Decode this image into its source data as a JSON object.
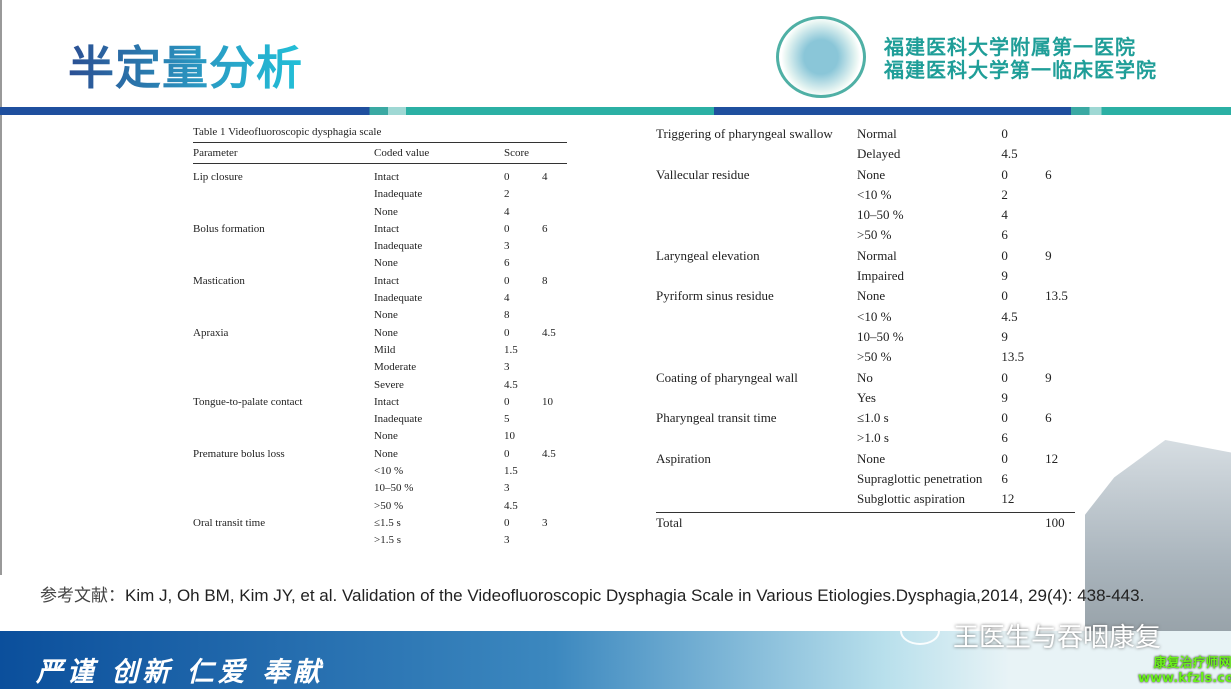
{
  "title": "半定量分析",
  "hospital": {
    "line1": "福建医科大学附属第一医院",
    "line2": "福建医科大学第一临床医学院"
  },
  "table1": {
    "caption": "Table 1  Videofluoroscopic dysphagia scale",
    "headers": [
      "Parameter",
      "Coded value",
      "Score",
      ""
    ],
    "rows": [
      [
        "Lip closure",
        "Intact",
        "0",
        "4"
      ],
      [
        "",
        "Inadequate",
        "2",
        ""
      ],
      [
        "",
        "None",
        "4",
        ""
      ],
      [
        "Bolus formation",
        "Intact",
        "0",
        "6"
      ],
      [
        "",
        "Inadequate",
        "3",
        ""
      ],
      [
        "",
        "None",
        "6",
        ""
      ],
      [
        "Mastication",
        "Intact",
        "0",
        "8"
      ],
      [
        "",
        "Inadequate",
        "4",
        ""
      ],
      [
        "",
        "None",
        "8",
        ""
      ],
      [
        "Apraxia",
        "None",
        "0",
        "4.5"
      ],
      [
        "",
        "Mild",
        "1.5",
        ""
      ],
      [
        "",
        "Moderate",
        "3",
        ""
      ],
      [
        "",
        "Severe",
        "4.5",
        ""
      ],
      [
        "Tongue-to-palate contact",
        "Intact",
        "0",
        "10"
      ],
      [
        "",
        "Inadequate",
        "5",
        ""
      ],
      [
        "",
        "None",
        "10",
        ""
      ],
      [
        "Premature bolus loss",
        "None",
        "0",
        "4.5"
      ],
      [
        "",
        "<10 %",
        "1.5",
        ""
      ],
      [
        "",
        "10–50 %",
        "3",
        ""
      ],
      [
        "",
        ">50 %",
        "4.5",
        ""
      ],
      [
        "Oral transit time",
        "≤1.5 s",
        "0",
        "3"
      ],
      [
        "",
        ">1.5 s",
        "3",
        ""
      ]
    ]
  },
  "table2": {
    "rows": [
      [
        "Triggering of pharyngeal swallow",
        "Normal",
        "0",
        ""
      ],
      [
        "",
        "Delayed",
        "4.5",
        ""
      ],
      [
        "Vallecular residue",
        "None",
        "0",
        "6"
      ],
      [
        "",
        "<10 %",
        "2",
        ""
      ],
      [
        "",
        "10–50 %",
        "4",
        ""
      ],
      [
        "",
        ">50 %",
        "6",
        ""
      ],
      [
        "Laryngeal elevation",
        "Normal",
        "0",
        "9"
      ],
      [
        "",
        "Impaired",
        "9",
        ""
      ],
      [
        "Pyriform sinus residue",
        "None",
        "0",
        "13.5"
      ],
      [
        "",
        "<10 %",
        "4.5",
        ""
      ],
      [
        "",
        "10–50 %",
        "9",
        ""
      ],
      [
        "",
        ">50 %",
        "13.5",
        ""
      ],
      [
        "Coating of pharyngeal wall",
        "No",
        "0",
        "9"
      ],
      [
        "",
        "Yes",
        "9",
        ""
      ],
      [
        "Pharyngeal transit time",
        "≤1.0 s",
        "0",
        "6"
      ],
      [
        "",
        ">1.0 s",
        "6",
        ""
      ],
      [
        "Aspiration",
        "None",
        "0",
        "12"
      ],
      [
        "",
        "Supraglottic penetration",
        "6",
        ""
      ],
      [
        "",
        "Subglottic aspiration",
        "12",
        ""
      ]
    ],
    "total": [
      "Total",
      "",
      "",
      "100"
    ]
  },
  "reference": {
    "label": "参考文献：",
    "text": "Kim J, Oh BM, Kim JY, et al. Validation of the Videofluoroscopic Dysphagia Scale in Various Etiologies.Dysphagia,2014, 29(4): 438-443."
  },
  "motto": "严谨  创新  仁爱  奉献",
  "watermark": "王医生与吞咽康复",
  "watermark2": {
    "line1": "康复治疗师网",
    "line2": "www.kfzls.com"
  }
}
